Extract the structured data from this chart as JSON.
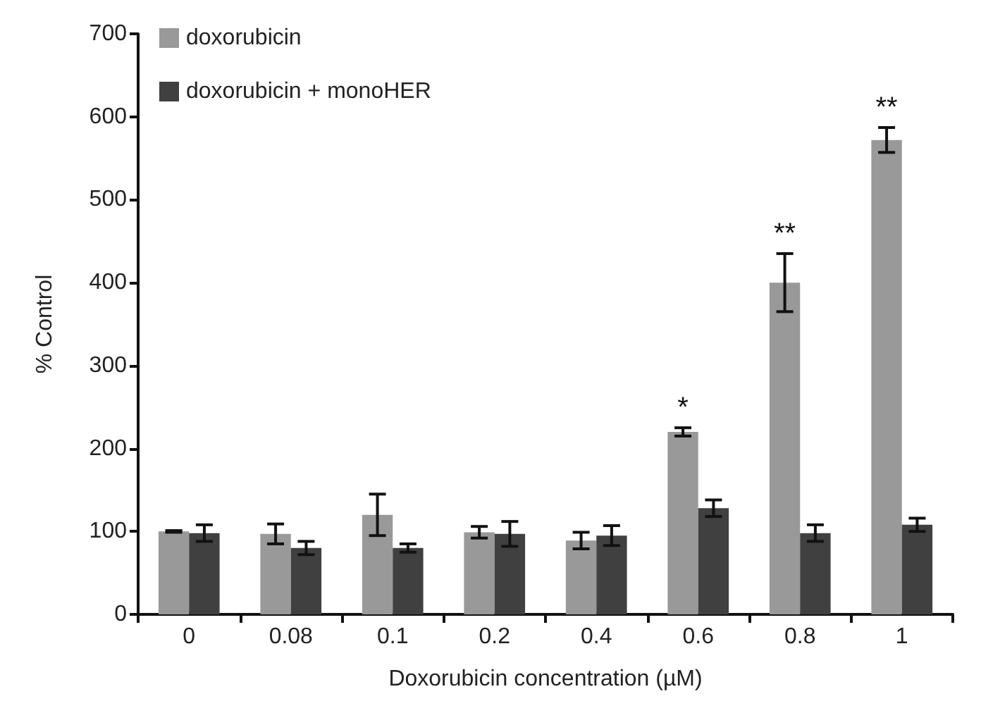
{
  "chart_data": {
    "type": "bar",
    "xlabel": "Doxorubicin concentration (µM)",
    "ylabel": "% Control",
    "categories": [
      "0",
      "0.08",
      "0.1",
      "0.2",
      "0.4",
      "0.6",
      "0.8",
      "1"
    ],
    "series": [
      {
        "name": "doxorubicin",
        "color": "#999999",
        "values": [
          100,
          97,
          120,
          99,
          89,
          220,
          400,
          572
        ],
        "errors": [
          1,
          12,
          25,
          7,
          10,
          5,
          35,
          15
        ]
      },
      {
        "name": "doxorubicin + monoHER",
        "color": "#404040",
        "values": [
          98,
          80,
          80,
          97,
          95,
          128,
          98,
          108
        ],
        "errors": [
          10,
          8,
          5,
          15,
          12,
          10,
          10,
          8
        ]
      }
    ],
    "ylim": [
      0,
      700
    ],
    "yticks": [
      0,
      100,
      200,
      300,
      400,
      500,
      600,
      700
    ],
    "grid": false,
    "legend": "top left",
    "annotations": [
      {
        "text": "*",
        "x": "0.6",
        "y": 220
      },
      {
        "text": "**",
        "x": "0.8",
        "y": 400
      },
      {
        "text": "**",
        "x": "1",
        "y": 572
      }
    ]
  }
}
